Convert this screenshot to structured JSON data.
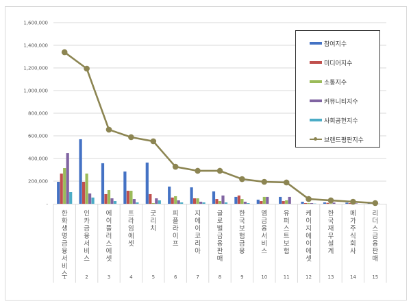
{
  "chart_data": {
    "type": "bar",
    "title": "",
    "xlabel": "",
    "ylabel": "",
    "ylim": [
      0,
      1600000
    ],
    "yticks": [
      "-",
      "200,000",
      "400,000",
      "600,000",
      "800,000",
      "1,000,000",
      "1,200,000",
      "1,400,000",
      "1,600,000"
    ],
    "grid": true,
    "legend_position": "upper-right-inside",
    "categories": [
      "한화생명금융서비스",
      "인카금융서비스",
      "에이플러스에셋",
      "프라임에셋",
      "굿리치",
      "피플라이프",
      "지에이코리아",
      "글로벌금융판매",
      "한국보험금융",
      "엠금융서비스",
      "유퍼스트보험",
      "케이지에이에셋",
      "한국재무설계",
      "메가주식회사",
      "리더스금융판매"
    ],
    "ranks": [
      "1",
      "2",
      "3",
      "4",
      "5",
      "6",
      "7",
      "8",
      "9",
      "10",
      "11",
      "12",
      "13",
      "14",
      "15"
    ],
    "series": [
      {
        "name": "참여지수",
        "type": "bar",
        "color": "#4472C4",
        "values": [
          194000,
          570000,
          358000,
          285000,
          364000,
          152000,
          145000,
          109000,
          61000,
          36000,
          61000,
          18000,
          12000,
          10000,
          4000
        ]
      },
      {
        "name": "미디어지수",
        "type": "bar",
        "color": "#C0504D",
        "values": [
          267000,
          194000,
          85000,
          115000,
          85000,
          55000,
          48000,
          42000,
          73000,
          24000,
          24000,
          6000,
          8000,
          6000,
          2000
        ]
      },
      {
        "name": "소통지수",
        "type": "bar",
        "color": "#9BBB59",
        "values": [
          315000,
          267000,
          121000,
          115000,
          6000,
          67000,
          48000,
          24000,
          42000,
          61000,
          30000,
          6000,
          4000,
          2000,
          1000
        ]
      },
      {
        "name": "커뮤니티지수",
        "type": "bar",
        "color": "#8064A2",
        "values": [
          448000,
          91000,
          48000,
          42000,
          48000,
          30000,
          18000,
          73000,
          18000,
          61000,
          61000,
          6000,
          10000,
          4000,
          1000
        ]
      },
      {
        "name": "사회공헌지수",
        "type": "bar",
        "color": "#4BACC6",
        "values": [
          103000,
          55000,
          24000,
          12000,
          30000,
          12000,
          12000,
          12000,
          6000,
          0,
          0,
          2000,
          0,
          0,
          0
        ]
      },
      {
        "name": "브랜드평판지수",
        "type": "line",
        "color": "#8C8552",
        "values": [
          1339000,
          1194000,
          655000,
          588000,
          552000,
          327000,
          291000,
          291000,
          218000,
          194000,
          188000,
          42000,
          30000,
          18000,
          6000
        ]
      }
    ]
  },
  "legend": {
    "items": [
      {
        "label": "참여지수",
        "color": "#4472C4",
        "kind": "bar"
      },
      {
        "label": "미디어지수",
        "color": "#C0504D",
        "kind": "bar"
      },
      {
        "label": "소통지수",
        "color": "#9BBB59",
        "kind": "bar"
      },
      {
        "label": "커뮤니티지수",
        "color": "#8064A2",
        "kind": "bar"
      },
      {
        "label": "사회공헌지수",
        "color": "#4BACC6",
        "kind": "bar"
      },
      {
        "label": "브랜드평판지수",
        "color": "#8C8552",
        "kind": "line"
      }
    ]
  }
}
